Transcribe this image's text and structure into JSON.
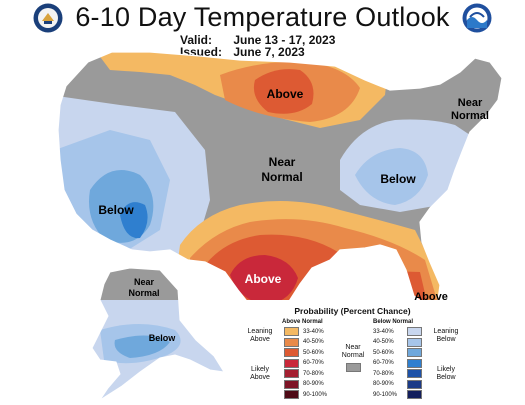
{
  "header": {
    "title": "6-10 Day Temperature Outlook",
    "valid_label": "Valid:",
    "valid_value": "June 13 - 17, 2023",
    "issued_label": "Issued:",
    "issued_value": "June 7, 2023"
  },
  "logos": {
    "left": "doc-seal",
    "right": "noaa-logo"
  },
  "map_labels": {
    "above_north": "Above",
    "near_normal_northeast": "Near\nNormal",
    "near_normal_central": "Near\nNormal",
    "below_east": "Below",
    "below_west": "Below",
    "above_texas": "Above",
    "above_florida": "Above",
    "near_normal_alaska": "Near\nNormal",
    "below_alaska": "Below"
  },
  "legend": {
    "title": "Probability (Percent Chance)",
    "above_header": "Above Normal",
    "below_header": "Below Normal",
    "near_header": "Near\nNormal",
    "above_rows": [
      {
        "label": "33-40%",
        "color": "#f4b963"
      },
      {
        "label": "40-50%",
        "color": "#e98a4a"
      },
      {
        "label": "50-60%",
        "color": "#dd5a33"
      },
      {
        "label": "60-70%",
        "color": "#c9283a"
      },
      {
        "label": "70-80%",
        "color": "#a41f31"
      },
      {
        "label": "80-90%",
        "color": "#7e1426"
      },
      {
        "label": "90-100%",
        "color": "#4e0a16"
      }
    ],
    "below_rows": [
      {
        "label": "33-40%",
        "color": "#c8d6ee"
      },
      {
        "label": "40-50%",
        "color": "#a6c5ea"
      },
      {
        "label": "50-60%",
        "color": "#6fa8dc"
      },
      {
        "label": "60-70%",
        "color": "#2f7fcf"
      },
      {
        "label": "70-80%",
        "color": "#1d52a8"
      },
      {
        "label": "80-90%",
        "color": "#1b3a87"
      },
      {
        "label": "90-100%",
        "color": "#121e5c"
      }
    ],
    "near_color": "#9a9a9a",
    "leaning_above": "Leaning\nAbove",
    "likely_above": "Likely\nAbove",
    "leaning_below": "Leaning\nBelow",
    "likely_below": "Likely\nBelow"
  }
}
